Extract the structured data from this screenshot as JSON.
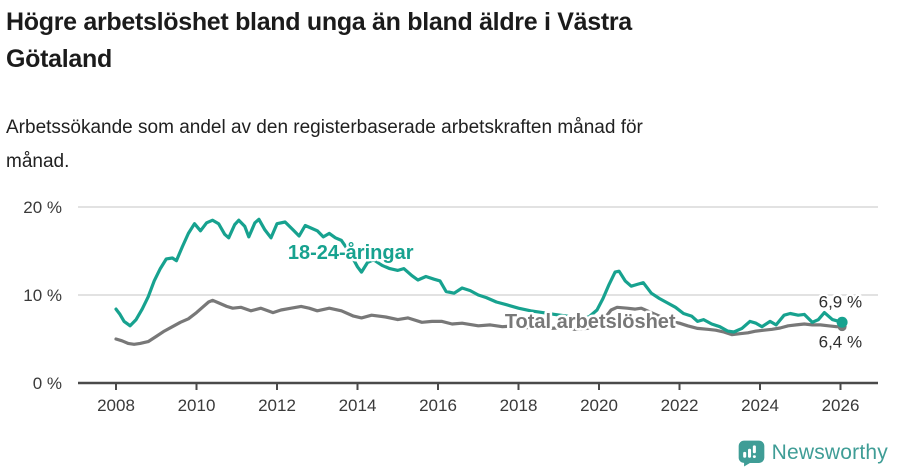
{
  "header": {
    "title_lines": [
      "Högre arbetslöshet bland unga än bland äldre i Västra",
      "Götaland"
    ],
    "subtitle_lines": [
      "Arbetssökande som andel av den registerbaserade arbetskraften månad för",
      "månad."
    ]
  },
  "chart_data": {
    "type": "line",
    "title": "Högre arbetslöshet bland unga än bland äldre i Västra Götaland",
    "subtitle": "Arbetssökande som andel av den registerbaserade arbetskraften månad för månad.",
    "unit": "%",
    "ylim": [
      0,
      20
    ],
    "grid": "horizontal-only",
    "legend_position": "inline-labels-on-lines",
    "y_ticks": [
      {
        "value": 0,
        "label": "0 %"
      },
      {
        "value": 10,
        "label": "10 %"
      },
      {
        "value": 20,
        "label": "20 %"
      }
    ],
    "x_ticks": [
      {
        "value": 2008,
        "label": "2008"
      },
      {
        "value": 2010,
        "label": "2010"
      },
      {
        "value": 2012,
        "label": "2012"
      },
      {
        "value": 2014,
        "label": "2014"
      },
      {
        "value": 2016,
        "label": "2016"
      },
      {
        "value": 2018,
        "label": "2018"
      },
      {
        "value": 2020,
        "label": "2020"
      },
      {
        "value": 2022,
        "label": "2022"
      },
      {
        "value": 2024,
        "label": "2024"
      },
      {
        "value": 2026,
        "label": "2026"
      }
    ],
    "series": [
      {
        "id": "total",
        "name": "Total arbetslöshet",
        "color": "#787878",
        "end_label": "6,4 %",
        "end_label_side": "below",
        "end_value": 6.4,
        "inline_label": {
          "x": 2017.66,
          "y": 6.25
        },
        "points": [
          [
            2008.0,
            5.0
          ],
          [
            2008.15,
            4.8
          ],
          [
            2008.3,
            4.5
          ],
          [
            2008.45,
            4.4
          ],
          [
            2008.6,
            4.5
          ],
          [
            2008.8,
            4.7
          ],
          [
            2009.0,
            5.3
          ],
          [
            2009.2,
            5.9
          ],
          [
            2009.4,
            6.4
          ],
          [
            2009.6,
            6.9
          ],
          [
            2009.8,
            7.3
          ],
          [
            2010.0,
            8.0
          ],
          [
            2010.15,
            8.6
          ],
          [
            2010.3,
            9.2
          ],
          [
            2010.4,
            9.4
          ],
          [
            2010.55,
            9.1
          ],
          [
            2010.75,
            8.7
          ],
          [
            2010.9,
            8.5
          ],
          [
            2011.1,
            8.6
          ],
          [
            2011.35,
            8.2
          ],
          [
            2011.6,
            8.5
          ],
          [
            2011.9,
            8.0
          ],
          [
            2012.1,
            8.3
          ],
          [
            2012.35,
            8.5
          ],
          [
            2012.6,
            8.7
          ],
          [
            2012.8,
            8.5
          ],
          [
            2013.0,
            8.2
          ],
          [
            2013.3,
            8.5
          ],
          [
            2013.6,
            8.2
          ],
          [
            2013.9,
            7.6
          ],
          [
            2014.1,
            7.4
          ],
          [
            2014.35,
            7.7
          ],
          [
            2014.7,
            7.5
          ],
          [
            2015.0,
            7.2
          ],
          [
            2015.25,
            7.4
          ],
          [
            2015.6,
            6.9
          ],
          [
            2015.85,
            7.0
          ],
          [
            2016.1,
            7.0
          ],
          [
            2016.35,
            6.7
          ],
          [
            2016.6,
            6.8
          ],
          [
            2017.0,
            6.5
          ],
          [
            2017.3,
            6.6
          ],
          [
            2017.6,
            6.4
          ],
          [
            2017.9,
            6.5
          ],
          [
            2018.2,
            6.3
          ],
          [
            2018.5,
            6.4
          ],
          [
            2018.8,
            6.2
          ],
          [
            2019.1,
            6.3
          ],
          [
            2019.4,
            6.1
          ],
          [
            2019.7,
            6.2
          ],
          [
            2019.95,
            6.5
          ],
          [
            2020.15,
            7.4
          ],
          [
            2020.3,
            8.3
          ],
          [
            2020.45,
            8.6
          ],
          [
            2020.7,
            8.5
          ],
          [
            2020.9,
            8.4
          ],
          [
            2021.05,
            8.5
          ],
          [
            2021.2,
            8.2
          ],
          [
            2021.4,
            7.8
          ],
          [
            2021.6,
            7.4
          ],
          [
            2021.8,
            7.0
          ],
          [
            2022.0,
            6.8
          ],
          [
            2022.2,
            6.5
          ],
          [
            2022.45,
            6.2
          ],
          [
            2022.7,
            6.1
          ],
          [
            2022.9,
            6.0
          ],
          [
            2023.1,
            5.8
          ],
          [
            2023.3,
            5.5
          ],
          [
            2023.5,
            5.6
          ],
          [
            2023.7,
            5.7
          ],
          [
            2023.9,
            5.9
          ],
          [
            2024.1,
            6.0
          ],
          [
            2024.3,
            6.1
          ],
          [
            2024.5,
            6.25
          ],
          [
            2024.7,
            6.5
          ],
          [
            2024.9,
            6.6
          ],
          [
            2025.1,
            6.7
          ],
          [
            2025.3,
            6.6
          ],
          [
            2025.5,
            6.6
          ],
          [
            2025.7,
            6.5
          ],
          [
            2025.9,
            6.4
          ],
          [
            2026.04,
            6.4
          ]
        ]
      },
      {
        "id": "young",
        "name": "18-24-åringar",
        "color": "#17a28f",
        "end_label": "6,9 %",
        "end_label_side": "above",
        "end_value": 6.9,
        "inline_label": {
          "x": 2012.27,
          "y": 14.1
        },
        "points": [
          [
            2008.0,
            8.4
          ],
          [
            2008.1,
            7.8
          ],
          [
            2008.2,
            7.0
          ],
          [
            2008.35,
            6.5
          ],
          [
            2008.5,
            7.2
          ],
          [
            2008.65,
            8.4
          ],
          [
            2008.8,
            9.8
          ],
          [
            2008.95,
            11.6
          ],
          [
            2009.1,
            13.0
          ],
          [
            2009.25,
            14.1
          ],
          [
            2009.4,
            14.2
          ],
          [
            2009.5,
            13.9
          ],
          [
            2009.65,
            15.5
          ],
          [
            2009.8,
            17.0
          ],
          [
            2009.95,
            18.1
          ],
          [
            2010.1,
            17.3
          ],
          [
            2010.25,
            18.2
          ],
          [
            2010.4,
            18.5
          ],
          [
            2010.55,
            18.1
          ],
          [
            2010.7,
            16.9
          ],
          [
            2010.8,
            16.5
          ],
          [
            2010.95,
            18.0
          ],
          [
            2011.05,
            18.5
          ],
          [
            2011.2,
            17.8
          ],
          [
            2011.3,
            16.6
          ],
          [
            2011.45,
            18.2
          ],
          [
            2011.55,
            18.6
          ],
          [
            2011.7,
            17.4
          ],
          [
            2011.85,
            16.5
          ],
          [
            2012.0,
            18.1
          ],
          [
            2012.2,
            18.3
          ],
          [
            2012.4,
            17.4
          ],
          [
            2012.55,
            16.7
          ],
          [
            2012.7,
            17.9
          ],
          [
            2012.85,
            17.6
          ],
          [
            2013.0,
            17.3
          ],
          [
            2013.15,
            16.6
          ],
          [
            2013.3,
            17.0
          ],
          [
            2013.45,
            16.5
          ],
          [
            2013.6,
            16.2
          ],
          [
            2013.8,
            14.9
          ],
          [
            2014.0,
            13.2
          ],
          [
            2014.1,
            12.6
          ],
          [
            2014.25,
            13.7
          ],
          [
            2014.4,
            14.0
          ],
          [
            2014.6,
            13.4
          ],
          [
            2014.8,
            13.0
          ],
          [
            2015.0,
            12.8
          ],
          [
            2015.15,
            13.0
          ],
          [
            2015.35,
            12.2
          ],
          [
            2015.5,
            11.7
          ],
          [
            2015.7,
            12.1
          ],
          [
            2015.9,
            11.8
          ],
          [
            2016.05,
            11.6
          ],
          [
            2016.2,
            10.4
          ],
          [
            2016.4,
            10.2
          ],
          [
            2016.6,
            10.8
          ],
          [
            2016.8,
            10.5
          ],
          [
            2017.0,
            10.0
          ],
          [
            2017.2,
            9.7
          ],
          [
            2017.45,
            9.2
          ],
          [
            2017.7,
            8.9
          ],
          [
            2018.0,
            8.5
          ],
          [
            2018.3,
            8.2
          ],
          [
            2018.6,
            8.0
          ],
          [
            2018.9,
            7.8
          ],
          [
            2019.2,
            7.6
          ],
          [
            2019.5,
            7.4
          ],
          [
            2019.75,
            7.5
          ],
          [
            2019.95,
            8.3
          ],
          [
            2020.1,
            9.6
          ],
          [
            2020.25,
            11.2
          ],
          [
            2020.4,
            12.6
          ],
          [
            2020.5,
            12.7
          ],
          [
            2020.65,
            11.6
          ],
          [
            2020.8,
            11.0
          ],
          [
            2020.95,
            11.2
          ],
          [
            2021.1,
            11.4
          ],
          [
            2021.3,
            10.2
          ],
          [
            2021.5,
            9.6
          ],
          [
            2021.7,
            9.1
          ],
          [
            2021.9,
            8.6
          ],
          [
            2022.1,
            7.9
          ],
          [
            2022.3,
            7.6
          ],
          [
            2022.45,
            7.0
          ],
          [
            2022.6,
            7.2
          ],
          [
            2022.8,
            6.7
          ],
          [
            2023.0,
            6.4
          ],
          [
            2023.2,
            5.9
          ],
          [
            2023.35,
            5.8
          ],
          [
            2023.55,
            6.2
          ],
          [
            2023.75,
            7.0
          ],
          [
            2023.9,
            6.8
          ],
          [
            2024.05,
            6.4
          ],
          [
            2024.25,
            7.0
          ],
          [
            2024.4,
            6.6
          ],
          [
            2024.6,
            7.7
          ],
          [
            2024.75,
            7.9
          ],
          [
            2024.95,
            7.7
          ],
          [
            2025.1,
            7.8
          ],
          [
            2025.3,
            6.9
          ],
          [
            2025.45,
            7.2
          ],
          [
            2025.6,
            8.0
          ],
          [
            2025.8,
            7.2
          ],
          [
            2026.04,
            6.9
          ]
        ]
      }
    ]
  },
  "brand": {
    "name": "Newsworthy",
    "color": "#3f9d96",
    "icon": "newsworthy-speech-bubble-bar-chart-icon"
  }
}
